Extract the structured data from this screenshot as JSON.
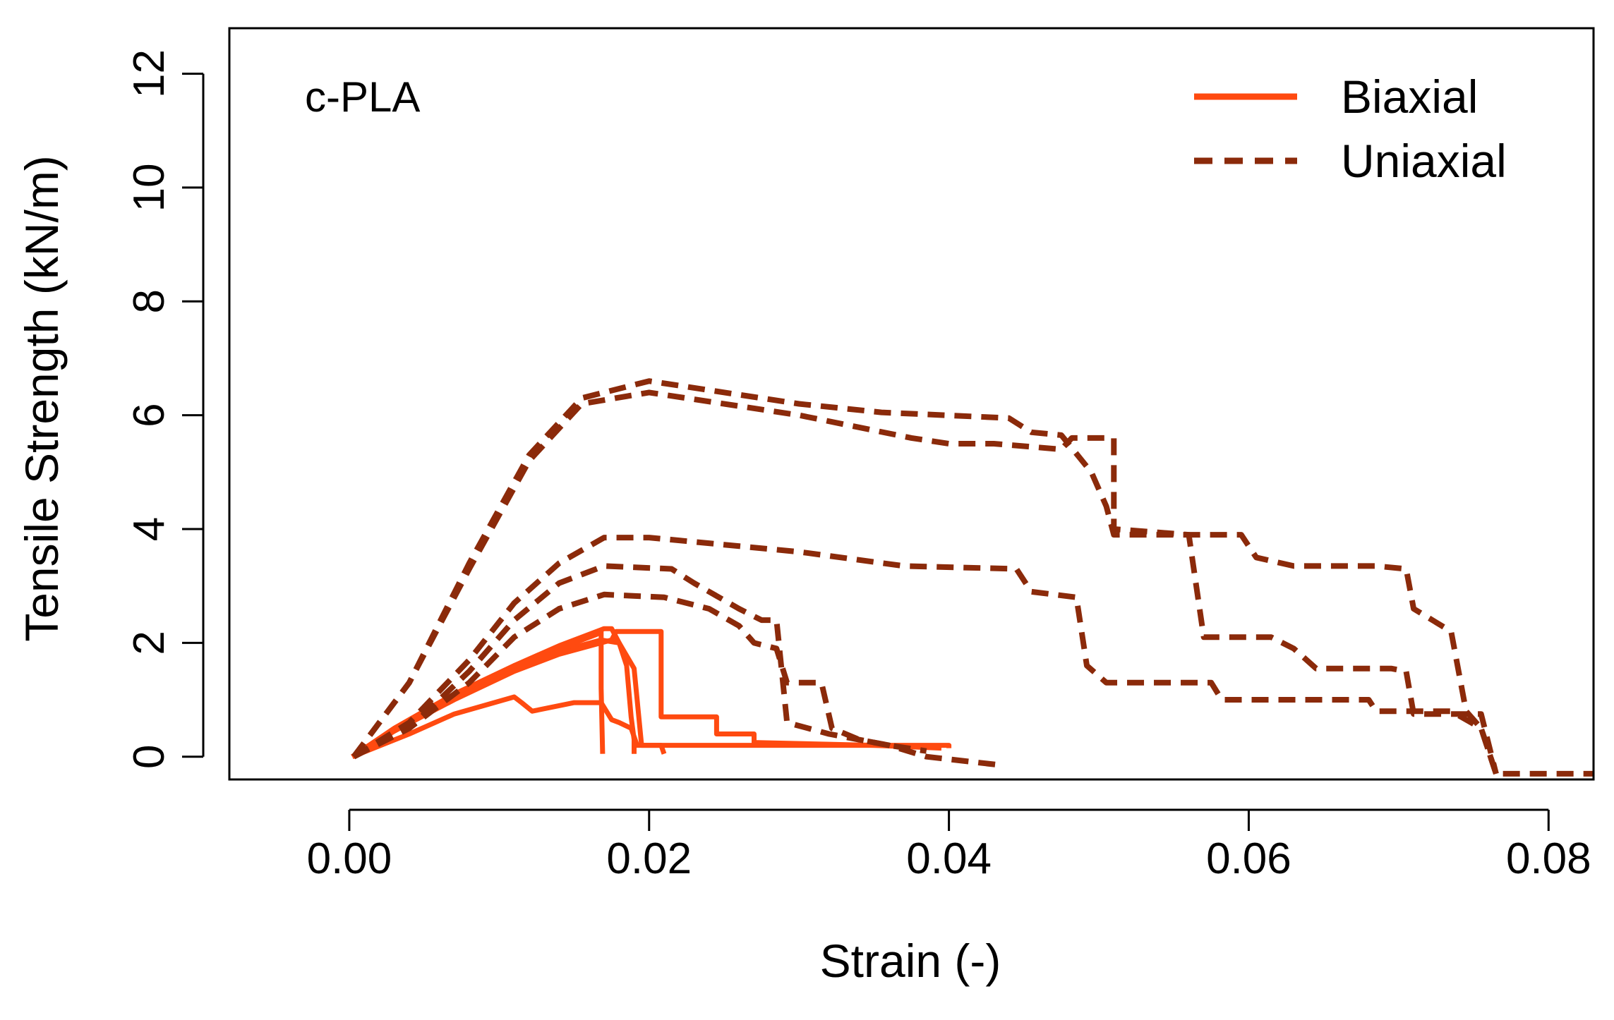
{
  "chart_data": {
    "type": "line",
    "annotation": "c-PLA",
    "xlabel": "Strain (-)",
    "ylabel": "Tensile Strength  (kN/m)",
    "xlim": [
      -0.008,
      0.083
    ],
    "ylim": [
      -0.4,
      12.8
    ],
    "xticks": [
      0.0,
      0.02,
      0.04,
      0.06,
      0.08
    ],
    "xtick_labels": [
      "0.00",
      "0.02",
      "0.04",
      "0.06",
      "0.08"
    ],
    "yticks": [
      0,
      2,
      4,
      6,
      8,
      10,
      12
    ],
    "ytick_labels": [
      "0",
      "2",
      "4",
      "6",
      "8",
      "10",
      "12"
    ],
    "grid": false,
    "legend_position": "top-right",
    "legend": [
      {
        "label": "Biaxial",
        "color": "#ff4a10",
        "style": "solid"
      },
      {
        "label": "Uniaxial",
        "color": "#8b2a0a",
        "style": "dashed"
      }
    ],
    "series": [
      {
        "group": "Biaxial",
        "color": "#ff4a10",
        "style": "solid",
        "points": [
          [
            0.0002,
            0
          ],
          [
            0.003,
            0.5
          ],
          [
            0.007,
            1.1
          ],
          [
            0.011,
            1.6
          ],
          [
            0.014,
            1.9
          ],
          [
            0.0165,
            2.15
          ],
          [
            0.0168,
            2.2
          ],
          [
            0.0168,
            1.2
          ],
          [
            0.0169,
            0.05
          ]
        ]
      },
      {
        "group": "Biaxial",
        "color": "#ff4a10",
        "style": "solid",
        "points": [
          [
            0.0002,
            0
          ],
          [
            0.003,
            0.45
          ],
          [
            0.007,
            1.05
          ],
          [
            0.011,
            1.55
          ],
          [
            0.014,
            1.85
          ],
          [
            0.0168,
            2.05
          ],
          [
            0.018,
            2.0
          ],
          [
            0.0185,
            1.6
          ],
          [
            0.0188,
            0.7
          ],
          [
            0.019,
            0.3
          ],
          [
            0.019,
            0.05
          ]
        ]
      },
      {
        "group": "Biaxial",
        "color": "#ff4a10",
        "style": "solid",
        "points": [
          [
            0.0002,
            0
          ],
          [
            0.003,
            0.5
          ],
          [
            0.007,
            1.1
          ],
          [
            0.011,
            1.6
          ],
          [
            0.014,
            1.95
          ],
          [
            0.017,
            2.25
          ],
          [
            0.0175,
            2.25
          ],
          [
            0.018,
            2.0
          ],
          [
            0.019,
            1.55
          ],
          [
            0.0195,
            0.2
          ],
          [
            0.024,
            0.2
          ],
          [
            0.03,
            0.2
          ],
          [
            0.036,
            0.2
          ],
          [
            0.04,
            0.2
          ],
          [
            0.04,
            0.15
          ]
        ]
      },
      {
        "group": "Biaxial",
        "color": "#ff4a10",
        "style": "solid",
        "points": [
          [
            0.0002,
            0
          ],
          [
            0.003,
            0.45
          ],
          [
            0.007,
            1.0
          ],
          [
            0.011,
            1.5
          ],
          [
            0.014,
            1.8
          ],
          [
            0.0175,
            2.05
          ],
          [
            0.0178,
            2.2
          ],
          [
            0.0208,
            2.2
          ],
          [
            0.0208,
            0.7
          ],
          [
            0.0245,
            0.7
          ],
          [
            0.0245,
            0.4
          ],
          [
            0.027,
            0.4
          ],
          [
            0.027,
            0.25
          ],
          [
            0.035,
            0.2
          ],
          [
            0.0395,
            0.15
          ]
        ]
      },
      {
        "group": "Biaxial",
        "color": "#ff4a10",
        "style": "solid",
        "points": [
          [
            0.0002,
            0
          ],
          [
            0.004,
            0.4
          ],
          [
            0.007,
            0.75
          ],
          [
            0.011,
            1.05
          ],
          [
            0.0115,
            0.95
          ],
          [
            0.0122,
            0.8
          ],
          [
            0.015,
            0.95
          ],
          [
            0.0168,
            0.95
          ],
          [
            0.0175,
            0.65
          ],
          [
            0.018,
            0.6
          ],
          [
            0.0188,
            0.5
          ],
          [
            0.0192,
            0.2
          ],
          [
            0.0208,
            0.2
          ],
          [
            0.021,
            0.05
          ]
        ]
      },
      {
        "group": "Uniaxial",
        "color": "#8b2a0a",
        "style": "dashed",
        "points": [
          [
            0.0003,
            0
          ],
          [
            0.004,
            0.5
          ],
          [
            0.008,
            1.3
          ],
          [
            0.011,
            2.1
          ],
          [
            0.014,
            2.6
          ],
          [
            0.017,
            2.85
          ],
          [
            0.021,
            2.8
          ],
          [
            0.024,
            2.6
          ],
          [
            0.026,
            2.3
          ],
          [
            0.027,
            2.0
          ],
          [
            0.0285,
            1.9
          ],
          [
            0.0292,
            1.3
          ],
          [
            0.0315,
            1.3
          ],
          [
            0.0322,
            0.5
          ],
          [
            0.034,
            0.3
          ],
          [
            0.036,
            0.2
          ],
          [
            0.0385,
            0.1
          ]
        ]
      },
      {
        "group": "Uniaxial",
        "color": "#8b2a0a",
        "style": "dashed",
        "points": [
          [
            0.0003,
            0
          ],
          [
            0.004,
            0.5
          ],
          [
            0.008,
            1.5
          ],
          [
            0.011,
            2.4
          ],
          [
            0.014,
            3.05
          ],
          [
            0.017,
            3.35
          ],
          [
            0.0215,
            3.3
          ],
          [
            0.023,
            3.05
          ],
          [
            0.026,
            2.6
          ],
          [
            0.0275,
            2.4
          ],
          [
            0.0285,
            2.4
          ],
          [
            0.0292,
            0.6
          ],
          [
            0.032,
            0.4
          ],
          [
            0.036,
            0.2
          ],
          [
            0.0385,
            0.0
          ],
          [
            0.0435,
            -0.15
          ]
        ]
      },
      {
        "group": "Uniaxial",
        "color": "#8b2a0a",
        "style": "dashed",
        "points": [
          [
            0.0003,
            0
          ],
          [
            0.004,
            0.6
          ],
          [
            0.008,
            1.7
          ],
          [
            0.011,
            2.7
          ],
          [
            0.014,
            3.4
          ],
          [
            0.017,
            3.85
          ],
          [
            0.02,
            3.85
          ],
          [
            0.03,
            3.6
          ],
          [
            0.037,
            3.35
          ],
          [
            0.0445,
            3.3
          ],
          [
            0.0455,
            2.9
          ],
          [
            0.0485,
            2.8
          ],
          [
            0.0492,
            1.6
          ],
          [
            0.0505,
            1.3
          ],
          [
            0.0575,
            1.3
          ],
          [
            0.0582,
            1.0
          ],
          [
            0.063,
            1.0
          ],
          [
            0.066,
            1.0
          ],
          [
            0.068,
            1.0
          ],
          [
            0.0685,
            0.8
          ],
          [
            0.0735,
            0.8
          ],
          [
            0.0755,
            0.5
          ],
          [
            0.0765,
            -0.3
          ],
          [
            0.083,
            -0.3
          ]
        ]
      },
      {
        "group": "Uniaxial",
        "color": "#8b2a0a",
        "style": "dashed",
        "points": [
          [
            0.0003,
            0
          ],
          [
            0.004,
            1.3
          ],
          [
            0.008,
            3.3
          ],
          [
            0.012,
            5.2
          ],
          [
            0.0155,
            6.2
          ],
          [
            0.02,
            6.4
          ],
          [
            0.03,
            6.0
          ],
          [
            0.0375,
            5.6
          ],
          [
            0.04,
            5.5
          ],
          [
            0.043,
            5.5
          ],
          [
            0.0475,
            5.4
          ],
          [
            0.0482,
            5.6
          ],
          [
            0.051,
            5.6
          ],
          [
            0.051,
            4.0
          ],
          [
            0.056,
            3.9
          ],
          [
            0.057,
            2.1
          ],
          [
            0.0615,
            2.1
          ],
          [
            0.063,
            1.9
          ],
          [
            0.0645,
            1.55
          ],
          [
            0.0695,
            1.55
          ],
          [
            0.0705,
            1.5
          ],
          [
            0.071,
            0.75
          ],
          [
            0.0755,
            0.75
          ],
          [
            0.0765,
            -0.3
          ]
        ]
      },
      {
        "group": "Uniaxial",
        "color": "#8b2a0a",
        "style": "dashed",
        "points": [
          [
            0.0003,
            0
          ],
          [
            0.004,
            1.3
          ],
          [
            0.008,
            3.4
          ],
          [
            0.012,
            5.3
          ],
          [
            0.0155,
            6.3
          ],
          [
            0.02,
            6.6
          ],
          [
            0.03,
            6.2
          ],
          [
            0.0355,
            6.05
          ],
          [
            0.044,
            5.95
          ],
          [
            0.0455,
            5.7
          ],
          [
            0.0475,
            5.65
          ],
          [
            0.0495,
            5.0
          ],
          [
            0.0505,
            4.4
          ],
          [
            0.051,
            3.9
          ],
          [
            0.0595,
            3.9
          ],
          [
            0.0605,
            3.5
          ],
          [
            0.063,
            3.35
          ],
          [
            0.0685,
            3.35
          ],
          [
            0.0705,
            3.3
          ],
          [
            0.071,
            2.6
          ],
          [
            0.0735,
            2.2
          ],
          [
            0.0745,
            0.8
          ],
          [
            0.0755,
            0.5
          ],
          [
            0.0765,
            -0.3
          ]
        ]
      }
    ]
  }
}
